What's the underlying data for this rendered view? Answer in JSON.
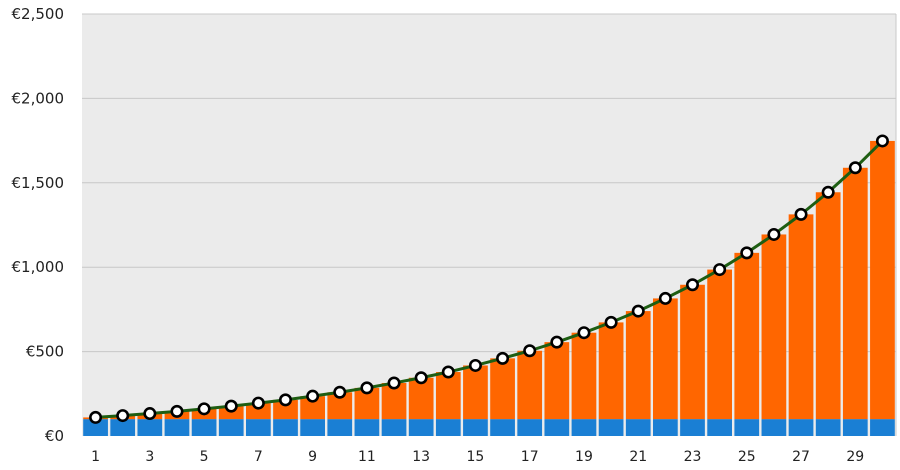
{
  "chart_data": {
    "type": "bar",
    "x": [
      1,
      2,
      3,
      4,
      5,
      6,
      7,
      8,
      9,
      10,
      11,
      12,
      13,
      14,
      15,
      16,
      17,
      18,
      19,
      20,
      21,
      22,
      23,
      24,
      25,
      26,
      27,
      28,
      29,
      30
    ],
    "x_tick_labels": [
      "1",
      "3",
      "5",
      "7",
      "9",
      "11",
      "13",
      "15",
      "17",
      "19",
      "21",
      "23",
      "25",
      "27",
      "29"
    ],
    "series": [
      {
        "role": "stacked-bar-base",
        "color": "#1a7fd4",
        "values": [
          100,
          100,
          100,
          100,
          100,
          100,
          100,
          100,
          100,
          100,
          100,
          100,
          100,
          100,
          100,
          100,
          100,
          100,
          100,
          100,
          100,
          100,
          100,
          100,
          100,
          100,
          100,
          100,
          100,
          100
        ]
      },
      {
        "role": "stacked-bar-growth",
        "color": "#ff6600",
        "values": [
          10,
          21,
          33,
          46,
          61,
          77,
          95,
          114,
          136,
          159,
          185,
          214,
          245,
          279,
          318,
          360,
          405,
          456,
          512,
          573,
          640,
          715,
          796,
          886,
          985,
          1094,
          1213,
          1344,
          1489,
          1648
        ]
      },
      {
        "role": "line-total",
        "color": "#1e5e12",
        "values": [
          110,
          121,
          133,
          146,
          161,
          177,
          195,
          214,
          236,
          259,
          285,
          314,
          345,
          379,
          418,
          460,
          505,
          556,
          612,
          673,
          740,
          815,
          896,
          986,
          1085,
          1194,
          1313,
          1444,
          1589,
          1748
        ]
      }
    ],
    "y_tick_labels": [
      "€0",
      "€500",
      "€1,000",
      "€1,500",
      "€2,000",
      "€2,500"
    ],
    "y_tick_values": [
      0,
      500,
      1000,
      1500,
      2000,
      2500
    ],
    "ylim": [
      0,
      2500
    ],
    "grid": true,
    "plot_background": "#ebebeb"
  }
}
